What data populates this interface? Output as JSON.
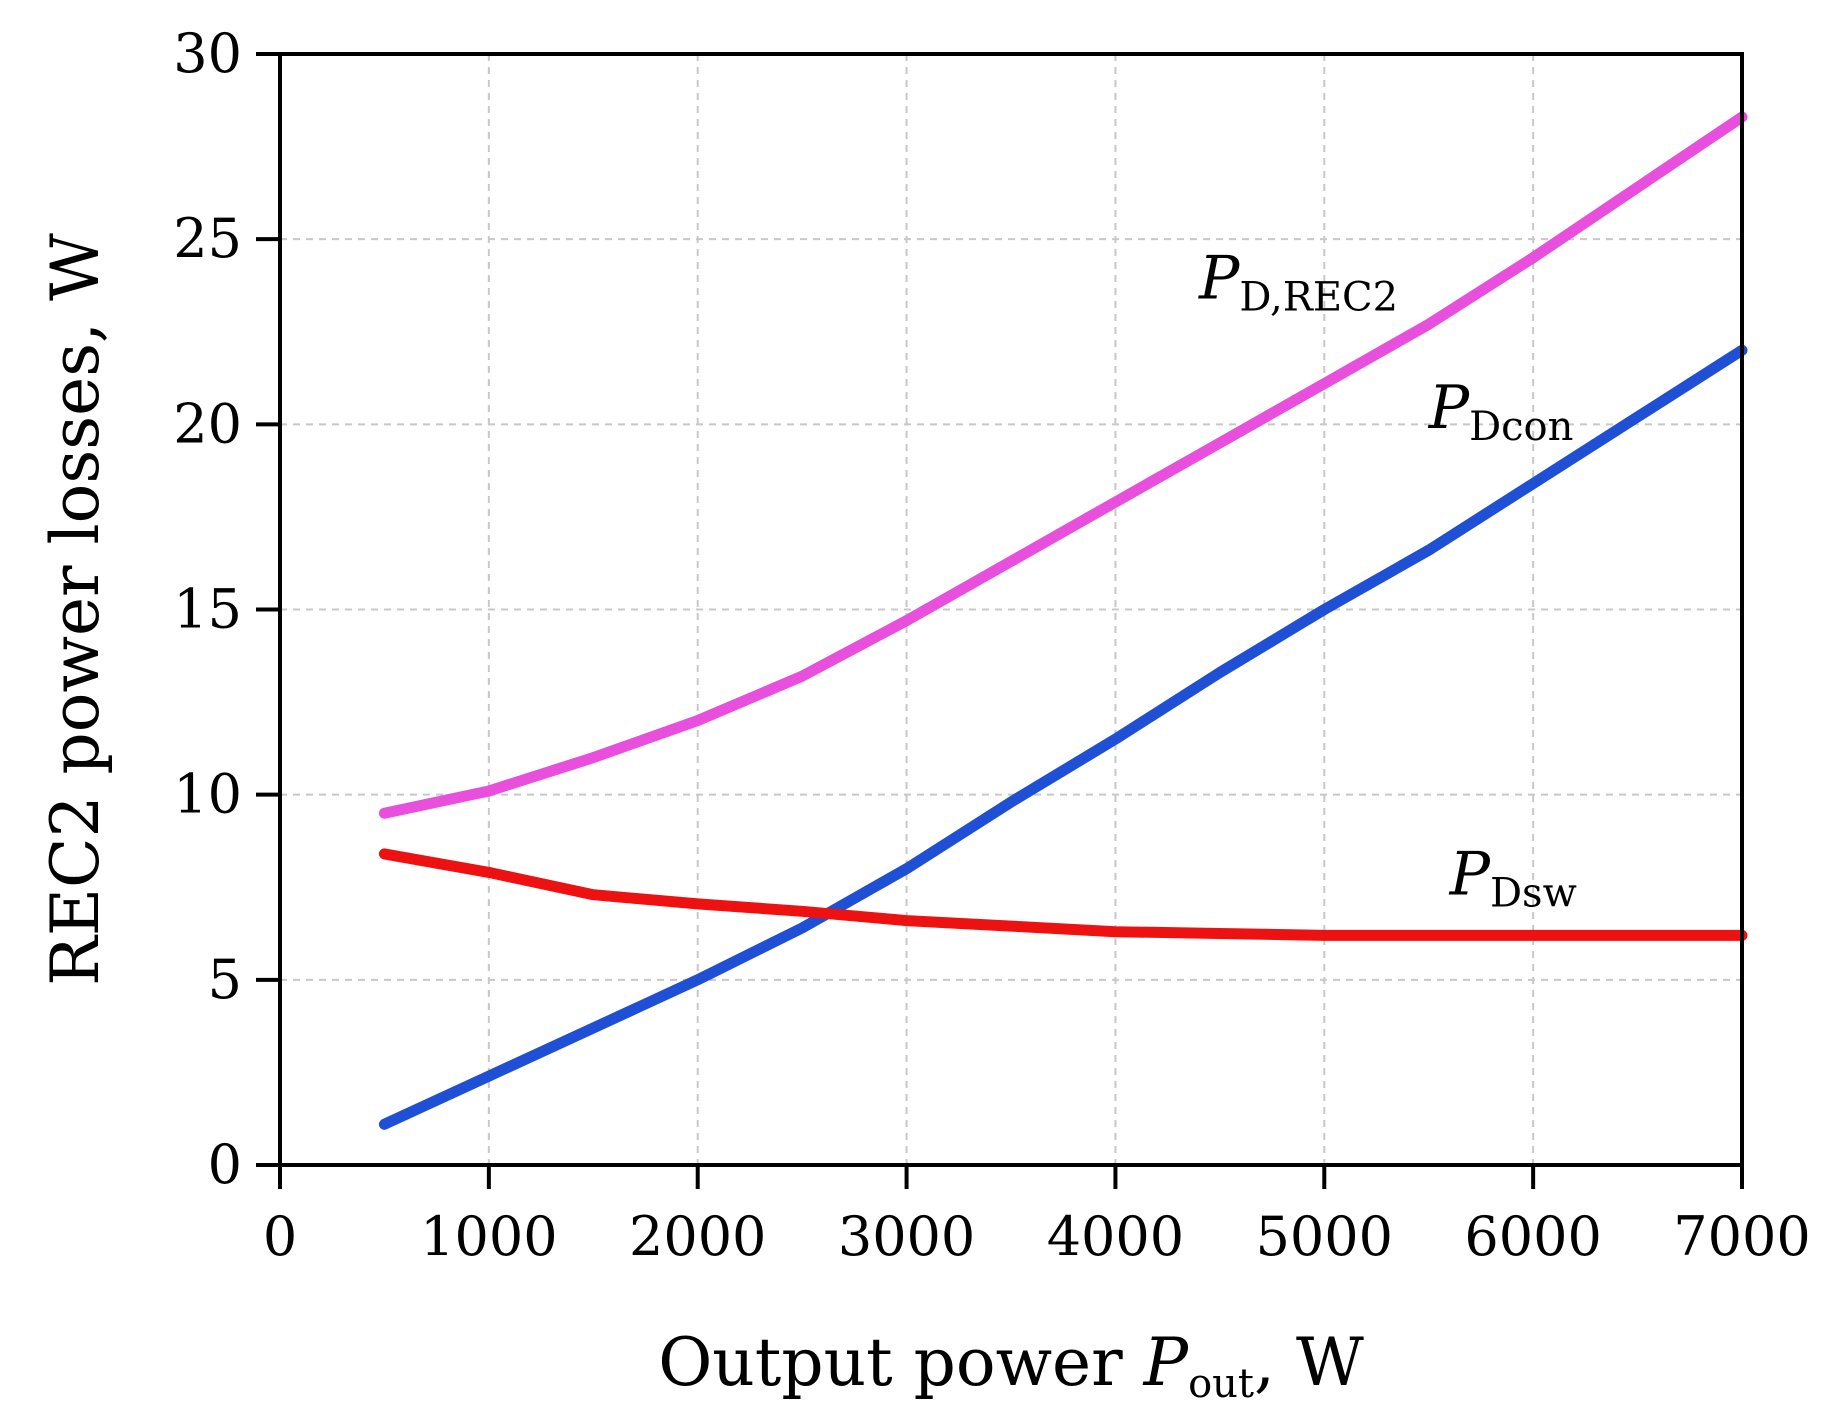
{
  "chart_data": {
    "type": "line",
    "title": "",
    "xlabel": {
      "prefix": "Output power ",
      "symbol": "P",
      "subscript": "out",
      "suffix": ", W"
    },
    "ylabel": "REC2 power losses, W",
    "xlim": [
      0,
      7000
    ],
    "ylim": [
      0,
      30
    ],
    "xticks": [
      0,
      1000,
      2000,
      3000,
      4000,
      5000,
      6000,
      7000
    ],
    "xtick_labels": [
      "0",
      "1000",
      "2000",
      "3000",
      "4000",
      "5000",
      "6000",
      "7000"
    ],
    "yticks": [
      0,
      5,
      10,
      15,
      20,
      25,
      30
    ],
    "ytick_labels": [
      "0",
      "5",
      "10",
      "15",
      "20",
      "25",
      "30"
    ],
    "grid": true,
    "series": [
      {
        "name": "PD,REC2",
        "label_symbol": "P",
        "label_subscript": "D,REC2",
        "color": "#e84fdc",
        "label_at": [
          4400,
          23.4
        ],
        "x": [
          500,
          1000,
          1500,
          2000,
          2500,
          3000,
          3500,
          4000,
          4500,
          5000,
          5500,
          6000,
          6500,
          7000
        ],
        "y": [
          9.5,
          10.1,
          11.0,
          12.0,
          13.2,
          14.7,
          16.3,
          17.9,
          19.5,
          21.1,
          22.7,
          24.5,
          26.4,
          28.3
        ]
      },
      {
        "name": "PDcon",
        "label_symbol": "P",
        "label_subscript": "Dcon",
        "color": "#1f4fd4",
        "label_at": [
          5500,
          19.9
        ],
        "x": [
          500,
          1000,
          1500,
          2000,
          2500,
          3000,
          3500,
          4000,
          4500,
          5000,
          5500,
          6000,
          6500,
          7000
        ],
        "y": [
          1.1,
          2.4,
          3.7,
          5.0,
          6.4,
          8.0,
          9.8,
          11.5,
          13.3,
          15.0,
          16.6,
          18.4,
          20.2,
          22.0
        ]
      },
      {
        "name": "PDsw",
        "label_symbol": "P",
        "label_subscript": "Dsw",
        "color": "#ee1111",
        "label_at": [
          5600,
          7.3
        ],
        "x": [
          500,
          1000,
          1500,
          2000,
          2500,
          3000,
          3500,
          4000,
          4500,
          5000,
          5500,
          6000,
          6500,
          7000
        ],
        "y": [
          8.4,
          7.9,
          7.3,
          7.05,
          6.85,
          6.6,
          6.45,
          6.3,
          6.25,
          6.2,
          6.2,
          6.2,
          6.2,
          6.2
        ]
      }
    ]
  }
}
